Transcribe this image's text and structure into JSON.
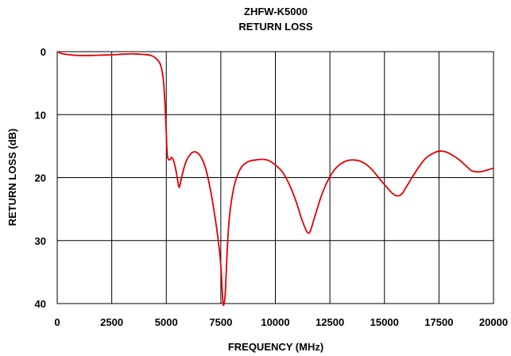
{
  "chart_data": {
    "type": "line",
    "title": "ZHFW-K5000",
    "subtitle": "RETURN LOSS",
    "xlabel": "FREQUENCY (MHz)",
    "ylabel": "RETURN LOSS (dB)",
    "xlim": [
      0,
      20000
    ],
    "ylim": [
      0,
      40
    ],
    "y_inverted": true,
    "grid": true,
    "legend": "none",
    "x_ticks": [
      "0",
      "2500",
      "5000",
      "7500",
      "10000",
      "12500",
      "15000",
      "17500",
      "20000"
    ],
    "y_ticks": [
      "0",
      "10",
      "20",
      "30",
      "40"
    ],
    "series": [
      {
        "color": "#e00000",
        "x": [
          10,
          200,
          600,
          1000,
          1500,
          2000,
          2500,
          3000,
          3500,
          4000,
          4300,
          4500,
          4700,
          4800,
          4880,
          4950,
          5000,
          5050,
          5150,
          5250,
          5350,
          5450,
          5550,
          5600,
          5700,
          5850,
          6000,
          6200,
          6400,
          6600,
          6800,
          7000,
          7200,
          7400,
          7500,
          7550,
          7600,
          7650,
          7700,
          7750,
          7800,
          7900,
          8100,
          8300,
          8500,
          8800,
          9100,
          9400,
          9700,
          10000,
          10300,
          10600,
          10900,
          11200,
          11400,
          11500,
          11600,
          11800,
          12100,
          12400,
          12700,
          13000,
          13300,
          13600,
          13900,
          14200,
          14500,
          14800,
          15100,
          15400,
          15600,
          15800,
          16000,
          16300,
          16600,
          16900,
          17200,
          17500,
          17800,
          18100,
          18400,
          18700,
          19000,
          19300,
          19500,
          19700,
          20000
        ],
        "values": [
          0.0,
          0.3,
          0.5,
          0.6,
          0.6,
          0.55,
          0.5,
          0.4,
          0.35,
          0.45,
          0.6,
          1.0,
          1.8,
          3.0,
          5.0,
          9.0,
          13.0,
          16.5,
          17.2,
          16.8,
          17.5,
          19.0,
          21.0,
          21.5,
          20.0,
          18.0,
          16.8,
          16.0,
          16.0,
          16.8,
          18.5,
          21.5,
          25.5,
          30.5,
          34.0,
          37.0,
          40.0,
          40.0,
          38.5,
          35.0,
          31.0,
          26.0,
          21.5,
          19.3,
          18.1,
          17.4,
          17.2,
          17.1,
          17.3,
          18.0,
          19.0,
          20.8,
          23.3,
          26.5,
          28.3,
          28.8,
          28.5,
          26.3,
          23.0,
          20.5,
          18.8,
          17.8,
          17.3,
          17.2,
          17.4,
          18.0,
          19.0,
          20.3,
          21.5,
          22.6,
          22.9,
          22.6,
          21.5,
          19.8,
          18.2,
          16.9,
          16.2,
          15.8,
          15.9,
          16.4,
          17.1,
          18.0,
          18.9,
          19.1,
          19.0,
          18.8,
          18.5
        ]
      }
    ]
  }
}
